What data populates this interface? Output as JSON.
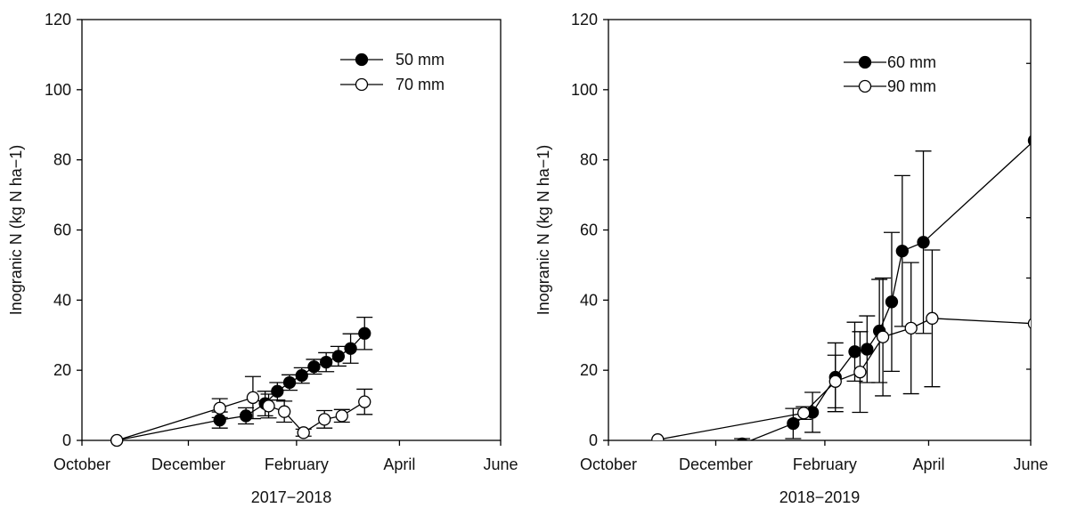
{
  "chart_data": [
    {
      "type": "scatter",
      "subplot": "left",
      "title": "",
      "xlabel": "2017−2018",
      "ylabel": "Inogranic N (kg N ha−1)",
      "xlim_days": [
        0,
        240
      ],
      "ylim": [
        0,
        120
      ],
      "x_tick_labels": [
        "October",
        "December",
        "February",
        "April",
        "June"
      ],
      "y_ticks": [
        0,
        20,
        40,
        60,
        80,
        100,
        120
      ],
      "legend_position": "top-right",
      "series": [
        {
          "name": "50 mm",
          "marker": "filled-circle",
          "x": [
            "2017-10-21",
            "2017-12-19",
            "2018-01-03",
            "2018-01-14",
            "2018-01-21",
            "2018-01-28",
            "2018-02-04",
            "2018-02-11",
            "2018-02-18",
            "2018-02-25",
            "2018-03-04",
            "2018-03-12"
          ],
          "y": [
            0,
            5.8,
            7.0,
            10.5,
            14.0,
            16.5,
            18.5,
            21.0,
            22.3,
            24.0,
            26.2,
            30.5
          ],
          "err": [
            0,
            2.3,
            2.3,
            3.5,
            2.5,
            2.2,
            2.2,
            2.1,
            2.7,
            2.8,
            4.2,
            4.6
          ]
        },
        {
          "name": "70 mm",
          "marker": "open-circle",
          "x": [
            "2017-10-21",
            "2017-12-19",
            "2018-01-07",
            "2018-01-16",
            "2018-01-25",
            "2018-02-05",
            "2018-02-17",
            "2018-02-27",
            "2018-03-12"
          ],
          "y": [
            0,
            9.2,
            12.2,
            9.8,
            8.2,
            2.2,
            6.0,
            7.0,
            11.0
          ],
          "err": [
            0,
            2.7,
            6.0,
            3.4,
            3.0,
            1.0,
            2.5,
            1.8,
            3.6
          ]
        }
      ]
    },
    {
      "type": "scatter",
      "subplot": "right",
      "title": "",
      "xlabel": "2018−2019",
      "ylabel": "Inogranic N (kg N ha−1)",
      "xlim_days": [
        0,
        240
      ],
      "ylim": [
        0,
        120
      ],
      "x_tick_labels": [
        "October",
        "December",
        "February",
        "April",
        "June"
      ],
      "y_ticks": [
        0,
        20,
        40,
        60,
        80,
        100,
        120
      ],
      "legend_position": "top-right",
      "series": [
        {
          "name": "60 mm",
          "marker": "filled-circle",
          "x": [
            "2018-12-16",
            "2019-01-14",
            "2019-01-25",
            "2019-02-07",
            "2019-02-18",
            "2019-02-25",
            "2019-03-04",
            "2019-03-11",
            "2019-03-17",
            "2019-03-29",
            "2019-05-31"
          ],
          "y": [
            -1.0,
            4.8,
            8.0,
            18.0,
            25.3,
            26.0,
            31.2,
            39.5,
            54.0,
            56.5,
            85.5
          ],
          "err": [
            1.5,
            4.3,
            5.7,
            9.8,
            8.4,
            9.5,
            14.7,
            19.8,
            21.5,
            26.0,
            22.0
          ]
        },
        {
          "name": "90 mm",
          "marker": "open-circle",
          "x": [
            "2018-10-29",
            "2019-01-20",
            "2019-02-07",
            "2019-02-21",
            "2019-03-06",
            "2019-03-22",
            "2019-04-03",
            "2019-05-31"
          ],
          "y": [
            0.2,
            7.8,
            16.8,
            19.5,
            29.5,
            32.0,
            34.8,
            33.3
          ],
          "err": [
            0,
            1.8,
            7.5,
            11.5,
            16.8,
            18.7,
            19.5,
            13.0
          ]
        }
      ]
    }
  ]
}
